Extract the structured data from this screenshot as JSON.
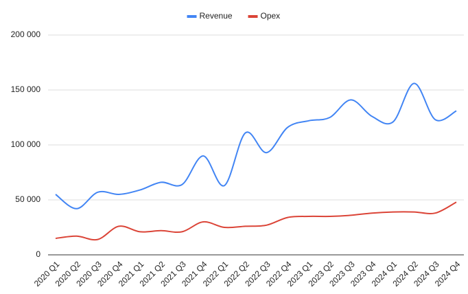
{
  "chart_data": {
    "type": "line",
    "categories": [
      "2020 Q1",
      "2020 Q2",
      "2020 Q3",
      "2020 Q4",
      "2021 Q1",
      "2021 Q2",
      "2021 Q3",
      "2021 Q4",
      "2022 Q1",
      "2022 Q2",
      "2022 Q3",
      "2022 Q4",
      "2023 Q1",
      "2023 Q2",
      "2023 Q3",
      "2023 Q4",
      "2024 Q1",
      "2024 Q2",
      "2024 Q3",
      "2024 Q4"
    ],
    "series": [
      {
        "name": "Revenue",
        "color": "#4285f4",
        "values": [
          55000,
          42000,
          57000,
          55000,
          59000,
          66000,
          64000,
          90000,
          63000,
          111000,
          93000,
          116000,
          122000,
          125000,
          141000,
          126000,
          121000,
          156000,
          123000,
          131000
        ]
      },
      {
        "name": "Opex",
        "color": "#db4437",
        "values": [
          15000,
          17000,
          14000,
          26000,
          21000,
          22000,
          21000,
          30000,
          25000,
          26000,
          27000,
          34000,
          35000,
          35000,
          36000,
          38000,
          39000,
          39000,
          38000,
          48000
        ]
      }
    ],
    "ylim": [
      0,
      200000
    ],
    "yticks": [
      0,
      {
        "value": 50000,
        "label": "50 000"
      },
      {
        "value": 100000,
        "label": "100 000"
      },
      {
        "value": 150000,
        "label": "150 000"
      },
      {
        "value": 200000,
        "label": "200 000"
      }
    ],
    "grid": true,
    "legend": "top",
    "smooth": true
  }
}
